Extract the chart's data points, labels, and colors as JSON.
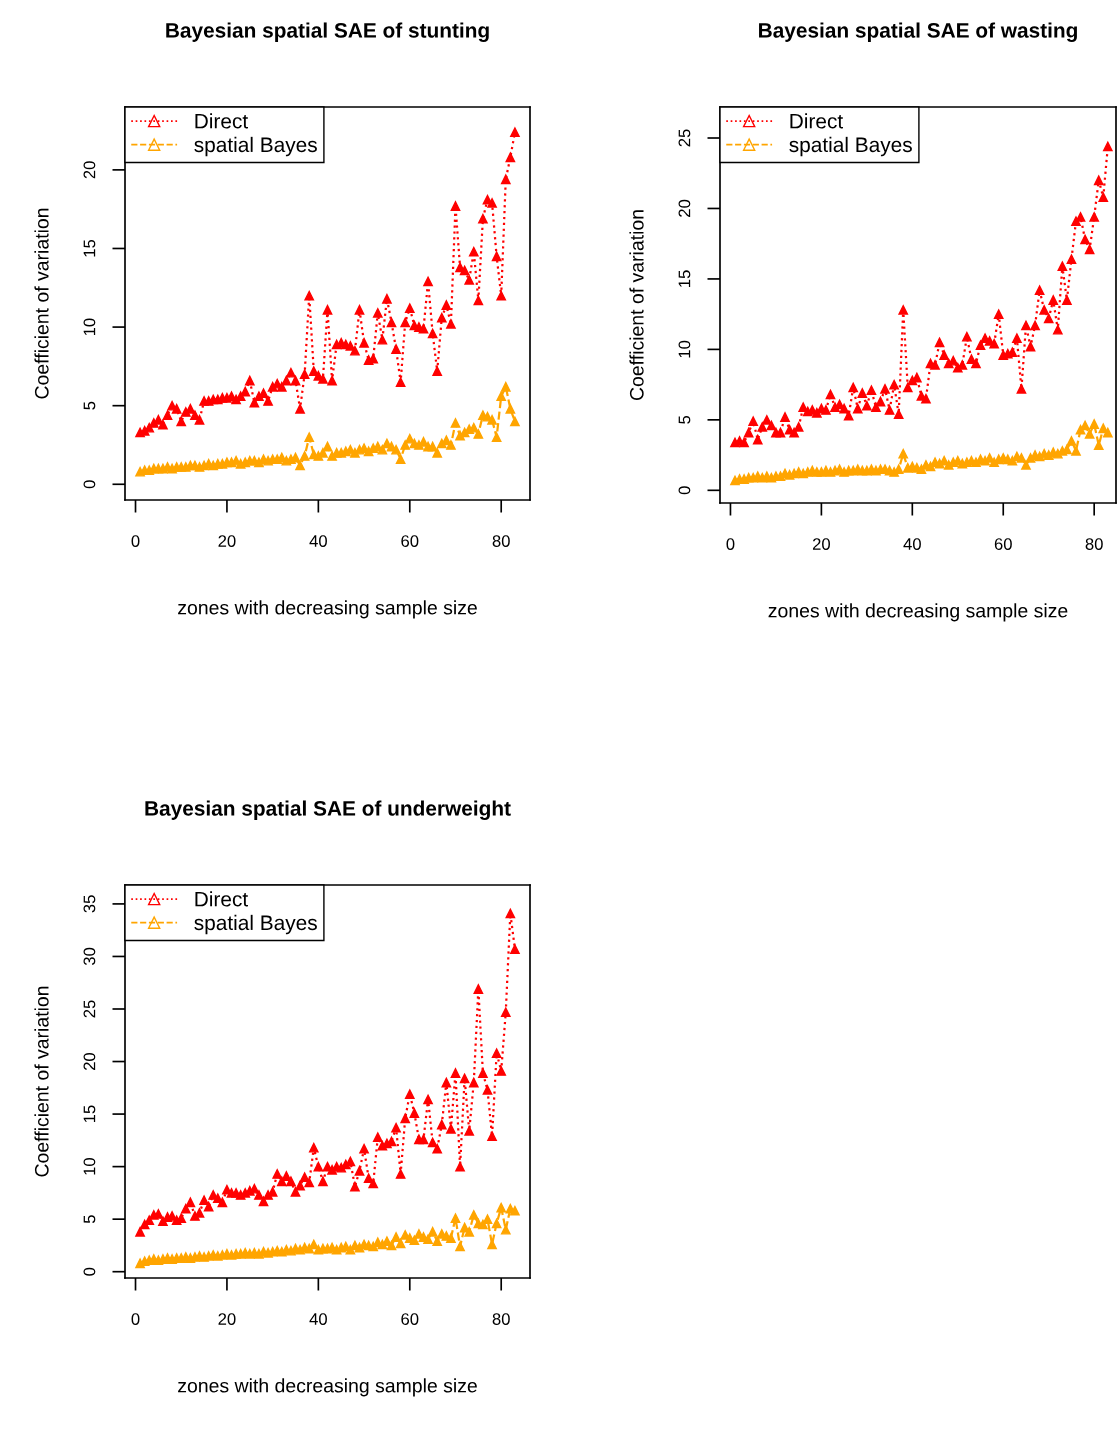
{
  "chart_data": [
    {
      "type": "line",
      "title": "Bayesian spatial SAE of stunting",
      "xlabel": "zones with decreasing sample size",
      "ylabel": "Coefficient of variation",
      "xlim": [
        -2.3,
        86.3
      ],
      "xticks": [
        0,
        20,
        40,
        60,
        80
      ],
      "ylim": [
        -1,
        24
      ],
      "yticks": [
        0,
        5,
        10,
        15,
        20
      ],
      "legend": "top left",
      "marker": "triangle",
      "x": [
        1,
        2,
        3,
        4,
        5,
        6,
        7,
        8,
        9,
        10,
        11,
        12,
        13,
        14,
        15,
        16,
        17,
        18,
        19,
        20,
        21,
        22,
        23,
        24,
        25,
        26,
        27,
        28,
        29,
        30,
        31,
        32,
        33,
        34,
        35,
        36,
        37,
        38,
        39,
        40,
        41,
        42,
        43,
        44,
        45,
        46,
        47,
        48,
        49,
        50,
        51,
        52,
        53,
        54,
        55,
        56,
        57,
        58,
        59,
        60,
        61,
        62,
        63,
        64,
        65,
        66,
        67,
        68,
        69,
        70,
        71,
        72,
        73,
        74,
        75,
        76,
        77,
        78,
        79,
        80,
        81,
        82,
        83
      ],
      "series": [
        {
          "name": "Direct",
          "color": "#ff0000",
          "line_style": "dotted",
          "values": [
            3.3,
            3.4,
            3.6,
            3.9,
            4.1,
            3.8,
            4.4,
            5.0,
            4.8,
            4.0,
            4.6,
            4.8,
            4.4,
            4.1,
            5.3,
            5.3,
            5.4,
            5.4,
            5.5,
            5.5,
            5.6,
            5.4,
            5.6,
            5.9,
            6.6,
            5.2,
            5.6,
            5.8,
            5.3,
            6.2,
            6.4,
            6.2,
            6.6,
            7.1,
            6.6,
            4.8,
            7.0,
            12.0,
            7.2,
            6.9,
            6.7,
            11.1,
            6.6,
            8.9,
            9.0,
            8.9,
            8.8,
            8.5,
            11.1,
            9.0,
            7.9,
            8.0,
            10.9,
            9.2,
            11.8,
            10.3,
            8.6,
            6.5,
            10.3,
            11.2,
            10.1,
            10.0,
            9.9,
            12.9,
            9.6,
            7.2,
            10.6,
            11.4,
            10.2,
            17.7,
            13.8,
            13.6,
            13.0,
            14.8,
            11.7,
            16.9,
            18.1,
            17.9,
            14.5,
            12.0,
            19.4,
            20.8,
            22.4
          ]
        },
        {
          "name": "spatial Bayes",
          "color": "#ffa500",
          "line_style": "dashed",
          "values": [
            0.8,
            0.9,
            0.9,
            1.0,
            1.0,
            1.0,
            1.1,
            1.0,
            1.1,
            1.1,
            1.1,
            1.2,
            1.2,
            1.1,
            1.2,
            1.3,
            1.2,
            1.3,
            1.3,
            1.4,
            1.4,
            1.5,
            1.3,
            1.4,
            1.5,
            1.5,
            1.4,
            1.6,
            1.5,
            1.6,
            1.6,
            1.7,
            1.5,
            1.6,
            1.7,
            1.2,
            1.8,
            3.0,
            1.9,
            1.8,
            2.0,
            2.4,
            1.8,
            2.0,
            2.0,
            2.1,
            2.2,
            2.0,
            2.2,
            2.3,
            2.1,
            2.3,
            2.4,
            2.2,
            2.6,
            2.4,
            2.2,
            1.6,
            2.5,
            2.9,
            2.6,
            2.5,
            2.7,
            2.4,
            2.4,
            2.0,
            2.6,
            2.8,
            2.5,
            3.9,
            3.1,
            3.3,
            3.5,
            3.6,
            3.2,
            4.4,
            4.3,
            4.1,
            3.0,
            5.6,
            6.2,
            4.8,
            4.0
          ]
        }
      ]
    },
    {
      "type": "line",
      "title": "Bayesian spatial SAE of wasting",
      "xlabel": "zones with decreasing sample size",
      "ylabel": "Coefficient of variation",
      "xlim": [
        -2.3,
        84.8
      ],
      "xticks": [
        0,
        20,
        40,
        60,
        80
      ],
      "ylim": [
        -0.9,
        27.2
      ],
      "yticks": [
        0,
        5,
        10,
        15,
        20,
        25
      ],
      "legend": "top left",
      "marker": "triangle",
      "x": [
        1,
        2,
        3,
        4,
        5,
        6,
        7,
        8,
        9,
        10,
        11,
        12,
        13,
        14,
        15,
        16,
        17,
        18,
        19,
        20,
        21,
        22,
        23,
        24,
        25,
        26,
        27,
        28,
        29,
        30,
        31,
        32,
        33,
        34,
        35,
        36,
        37,
        38,
        39,
        40,
        41,
        42,
        43,
        44,
        45,
        46,
        47,
        48,
        49,
        50,
        51,
        52,
        53,
        54,
        55,
        56,
        57,
        58,
        59,
        60,
        61,
        62,
        63,
        64,
        65,
        66,
        67,
        68,
        69,
        70,
        71,
        72,
        73,
        74,
        75,
        76,
        77,
        78,
        79,
        80,
        81,
        82,
        83
      ],
      "series": [
        {
          "name": "Direct",
          "color": "#ff0000",
          "line_style": "dotted",
          "values": [
            3.4,
            3.5,
            3.4,
            4.1,
            4.9,
            3.6,
            4.5,
            5.0,
            4.6,
            4.1,
            4.1,
            5.2,
            4.3,
            4.1,
            4.5,
            5.9,
            5.6,
            5.7,
            5.5,
            5.8,
            5.7,
            6.8,
            5.9,
            6.1,
            5.8,
            5.3,
            7.3,
            5.8,
            6.9,
            6.0,
            7.1,
            5.9,
            6.3,
            7.2,
            5.7,
            7.5,
            5.4,
            12.8,
            7.3,
            7.8,
            8.0,
            6.7,
            6.5,
            9.0,
            8.9,
            10.5,
            9.6,
            9.0,
            9.2,
            8.7,
            8.9,
            10.9,
            9.3,
            9.0,
            10.3,
            10.8,
            10.6,
            10.4,
            12.5,
            9.6,
            9.7,
            9.8,
            10.8,
            7.2,
            11.7,
            10.2,
            11.7,
            14.2,
            12.8,
            12.2,
            13.5,
            11.4,
            15.9,
            13.5,
            16.4,
            19.1,
            19.4,
            17.8,
            17.1,
            19.4,
            22.0,
            20.8,
            24.4
          ]
        },
        {
          "name": "spatial Bayes",
          "color": "#ffa500",
          "line_style": "dashed",
          "values": [
            0.7,
            0.8,
            0.8,
            0.9,
            0.9,
            1.0,
            0.9,
            1.0,
            0.9,
            1.0,
            1.0,
            1.2,
            1.1,
            1.2,
            1.3,
            1.2,
            1.3,
            1.4,
            1.3,
            1.3,
            1.4,
            1.3,
            1.4,
            1.5,
            1.3,
            1.4,
            1.4,
            1.5,
            1.4,
            1.4,
            1.5,
            1.4,
            1.5,
            1.5,
            1.4,
            1.3,
            1.5,
            2.6,
            1.6,
            1.7,
            1.6,
            1.5,
            1.8,
            1.7,
            2.0,
            1.9,
            2.1,
            1.8,
            2.0,
            2.1,
            1.9,
            2.0,
            2.1,
            2.0,
            2.2,
            2.1,
            2.3,
            2.0,
            2.2,
            2.3,
            2.2,
            2.1,
            2.4,
            2.3,
            1.8,
            2.3,
            2.5,
            2.4,
            2.6,
            2.5,
            2.7,
            2.6,
            2.8,
            2.9,
            3.5,
            2.8,
            4.3,
            4.6,
            4.0,
            4.7,
            3.2,
            4.4,
            4.1
          ]
        }
      ]
    },
    {
      "type": "line",
      "title": "Bayesian spatial SAE of underweight",
      "xlabel": "zones with decreasing sample size",
      "ylabel": "Coefficient of variation",
      "xlim": [
        -2.3,
        86.3
      ],
      "xticks": [
        0,
        20,
        40,
        60,
        80
      ],
      "ylim": [
        -0.6,
        36.8
      ],
      "yticks": [
        0,
        5,
        10,
        15,
        20,
        25,
        30,
        35
      ],
      "legend": "top left",
      "marker": "triangle",
      "x": [
        1,
        2,
        3,
        4,
        5,
        6,
        7,
        8,
        9,
        10,
        11,
        12,
        13,
        14,
        15,
        16,
        17,
        18,
        19,
        20,
        21,
        22,
        23,
        24,
        25,
        26,
        27,
        28,
        29,
        30,
        31,
        32,
        33,
        34,
        35,
        36,
        37,
        38,
        39,
        40,
        41,
        42,
        43,
        44,
        45,
        46,
        47,
        48,
        49,
        50,
        51,
        52,
        53,
        54,
        55,
        56,
        57,
        58,
        59,
        60,
        61,
        62,
        63,
        64,
        65,
        66,
        67,
        68,
        69,
        70,
        71,
        72,
        73,
        74,
        75,
        76,
        77,
        78,
        79,
        80,
        81,
        82,
        83
      ],
      "series": [
        {
          "name": "Direct",
          "color": "#ff0000",
          "line_style": "dotted",
          "values": [
            3.8,
            4.5,
            4.9,
            5.4,
            5.5,
            4.8,
            5.2,
            5.3,
            4.9,
            5.1,
            6.0,
            6.6,
            5.3,
            5.6,
            6.8,
            6.2,
            7.3,
            7.0,
            6.6,
            7.8,
            7.5,
            7.5,
            7.3,
            7.5,
            7.7,
            7.9,
            7.3,
            6.7,
            7.3,
            7.6,
            9.3,
            8.6,
            9.1,
            8.6,
            7.6,
            8.2,
            9.0,
            8.5,
            11.8,
            10.0,
            8.6,
            10.0,
            9.7,
            10.0,
            9.9,
            10.2,
            10.5,
            8.1,
            9.6,
            11.7,
            8.9,
            8.4,
            12.8,
            12.0,
            12.2,
            12.4,
            13.7,
            9.3,
            14.6,
            16.9,
            15.1,
            12.6,
            12.6,
            16.4,
            12.3,
            11.7,
            14.0,
            18.0,
            13.6,
            18.9,
            10.0,
            18.4,
            13.4,
            18.0,
            26.9,
            18.9,
            17.3,
            12.9,
            20.8,
            19.1,
            24.7,
            34.1,
            30.7
          ]
        },
        {
          "name": "spatial Bayes",
          "color": "#ffa500",
          "line_style": "dashed",
          "values": [
            0.8,
            1.0,
            1.1,
            1.2,
            1.1,
            1.2,
            1.3,
            1.2,
            1.3,
            1.3,
            1.4,
            1.3,
            1.4,
            1.5,
            1.4,
            1.5,
            1.6,
            1.5,
            1.6,
            1.7,
            1.6,
            1.7,
            1.7,
            1.8,
            1.7,
            1.8,
            1.7,
            1.9,
            1.8,
            1.9,
            2.0,
            1.9,
            2.1,
            2.0,
            2.2,
            2.1,
            2.3,
            2.2,
            2.6,
            2.1,
            2.2,
            2.2,
            2.3,
            2.1,
            2.3,
            2.4,
            2.1,
            2.5,
            2.3,
            2.6,
            2.5,
            2.4,
            2.8,
            2.6,
            2.9,
            2.5,
            3.3,
            2.7,
            3.5,
            3.2,
            3.0,
            3.6,
            3.3,
            3.1,
            3.8,
            2.9,
            3.6,
            3.4,
            3.2,
            5.1,
            2.4,
            4.2,
            3.8,
            5.4,
            4.6,
            4.5,
            5.0,
            2.6,
            4.6,
            6.1,
            4.0,
            6.0,
            5.8
          ]
        }
      ]
    }
  ]
}
